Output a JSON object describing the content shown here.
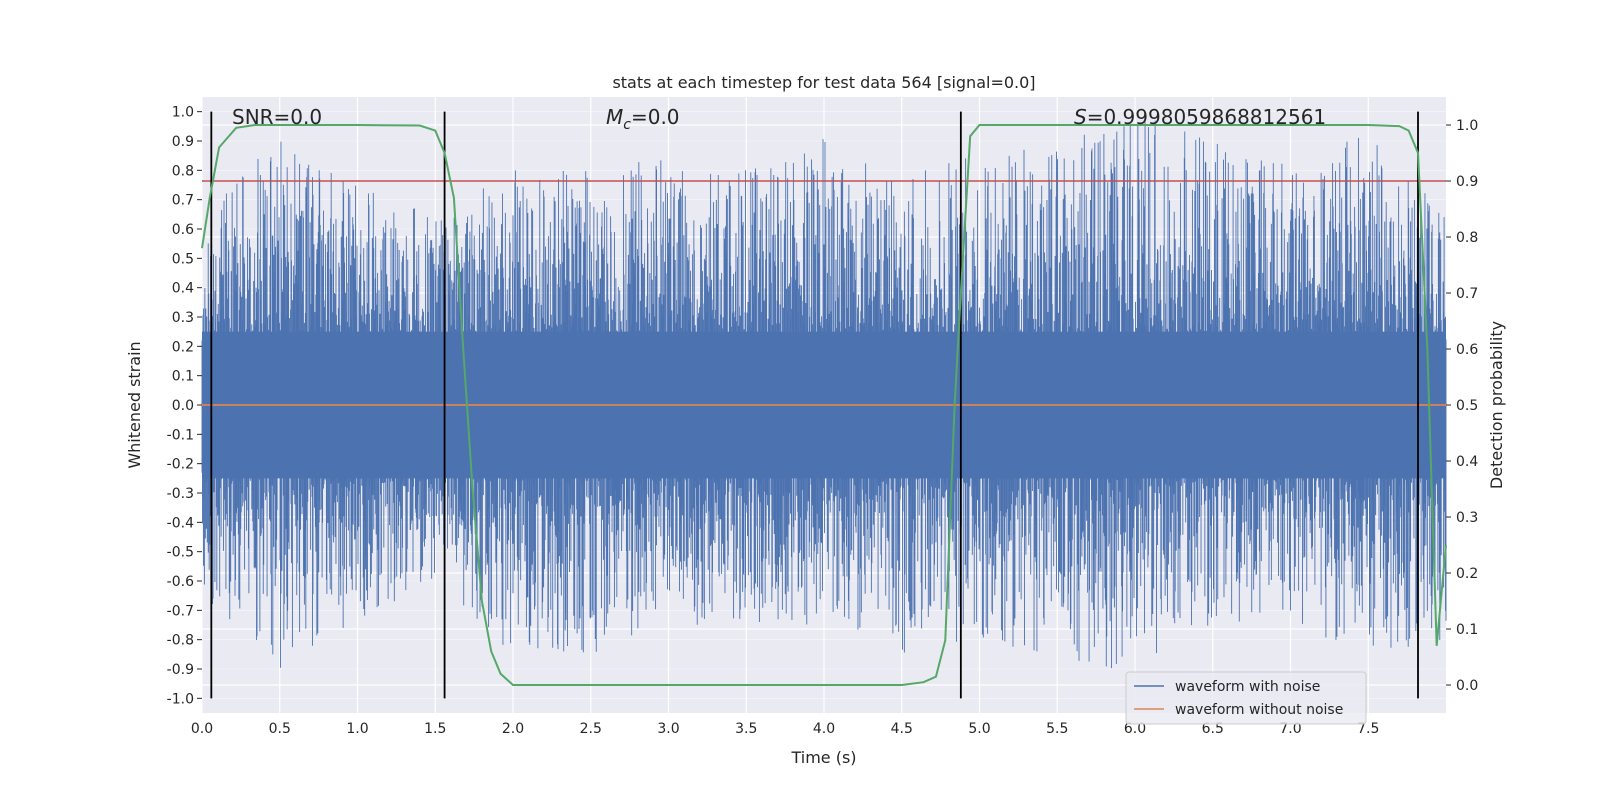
{
  "chart_data": {
    "type": "line",
    "title": "stats at each timestep for test data 564 [signal=0.0]",
    "xlabel": "Time (s)",
    "ylabel": "Whitened strain",
    "y2label": "Detection probability",
    "xlim": [
      0.0,
      8.0
    ],
    "ylim": [
      -1.05,
      1.05
    ],
    "y2lim": [
      -0.05,
      1.05
    ],
    "x_ticks": [
      "0.0",
      "0.5",
      "1.0",
      "1.5",
      "2.0",
      "2.5",
      "3.0",
      "3.5",
      "4.0",
      "4.5",
      "5.0",
      "5.5",
      "6.0",
      "6.5",
      "7.0",
      "7.5"
    ],
    "y_ticks": [
      "1.0",
      "0.9",
      "0.8",
      "0.7",
      "0.6",
      "0.5",
      "0.4",
      "0.3",
      "0.2",
      "0.1",
      "0.0",
      "-0.1",
      "-0.2",
      "-0.3",
      "-0.4",
      "-0.5",
      "-0.6",
      "-0.7",
      "-0.8",
      "-0.9",
      "-1.0"
    ],
    "y2_ticks": [
      "1.0",
      "0.9",
      "0.8",
      "0.7",
      "0.6",
      "0.5",
      "0.4",
      "0.3",
      "0.2",
      "0.1",
      "0.0"
    ],
    "grid": true,
    "legend": {
      "placement": "bottom-right",
      "entries": [
        {
          "name": "waveform with noise",
          "color": "#4c72b0"
        },
        {
          "name": "waveform without noise",
          "color": "#dd8452"
        }
      ]
    },
    "annotations": {
      "snr": "SNR=0.0",
      "mc_symbol": "M",
      "mc_sub": "c",
      "mc_value": "=0.0",
      "s_symbol": "S",
      "s_value": "=0.9998059868812561"
    },
    "threshold": {
      "y2": 0.9,
      "color": "#c44e52"
    },
    "boundaries_x": [
      0.06,
      1.56,
      4.88,
      7.82
    ],
    "series": [
      {
        "name": "waveform with noise",
        "color": "#4c72b0",
        "kind": "noise",
        "envelope": [
          {
            "x": 0.0,
            "max": 0.65,
            "min": -0.65
          },
          {
            "x": 0.5,
            "max": 0.92,
            "min": -0.9
          },
          {
            "x": 1.0,
            "max": 0.75,
            "min": -0.75
          },
          {
            "x": 1.5,
            "max": 0.65,
            "min": -0.6
          },
          {
            "x": 2.0,
            "max": 0.8,
            "min": -0.85
          },
          {
            "x": 2.5,
            "max": 0.8,
            "min": -0.85
          },
          {
            "x": 3.0,
            "max": 0.85,
            "min": -0.75
          },
          {
            "x": 3.5,
            "max": 0.8,
            "min": -0.75
          },
          {
            "x": 4.0,
            "max": 0.92,
            "min": -0.75
          },
          {
            "x": 4.5,
            "max": 0.8,
            "min": -0.85
          },
          {
            "x": 5.0,
            "max": 0.85,
            "min": -0.8
          },
          {
            "x": 5.5,
            "max": 0.9,
            "min": -0.9
          },
          {
            "x": 6.0,
            "max": 1.0,
            "min": -0.9
          },
          {
            "x": 6.5,
            "max": 0.9,
            "min": -0.75
          },
          {
            "x": 7.0,
            "max": 0.85,
            "min": -0.75
          },
          {
            "x": 7.5,
            "max": 0.92,
            "min": -0.85
          },
          {
            "x": 8.0,
            "max": 0.65,
            "min": -0.8
          }
        ]
      },
      {
        "name": "waveform without noise",
        "color": "#dd8452",
        "x": [
          0.0,
          8.0
        ],
        "y": [
          0.0,
          0.0
        ]
      },
      {
        "name": "detection probability",
        "color": "#55a868",
        "axis": "y2",
        "x": [
          0.0,
          0.05,
          0.11,
          0.22,
          0.34,
          0.5,
          1.0,
          1.4,
          1.5,
          1.56,
          1.62,
          1.68,
          1.74,
          1.8,
          1.86,
          1.92,
          2.0,
          2.5,
          3.0,
          3.5,
          4.0,
          4.5,
          4.64,
          4.72,
          4.78,
          4.84,
          4.88,
          4.94,
          5.0,
          5.5,
          6.0,
          6.5,
          7.0,
          7.5,
          7.7,
          7.76,
          7.82,
          7.88,
          7.94,
          8.0
        ],
        "y": [
          0.78,
          0.87,
          0.96,
          0.995,
          1.0,
          1.0,
          1.0,
          0.999,
          0.99,
          0.95,
          0.87,
          0.6,
          0.35,
          0.15,
          0.06,
          0.02,
          0.0,
          0.0,
          0.0,
          0.0,
          0.0,
          0.0,
          0.005,
          0.015,
          0.08,
          0.5,
          0.7,
          0.98,
          1.0,
          1.0,
          1.0,
          1.0,
          1.0,
          1.0,
          0.998,
          0.99,
          0.95,
          0.6,
          0.07,
          0.25
        ]
      }
    ]
  }
}
